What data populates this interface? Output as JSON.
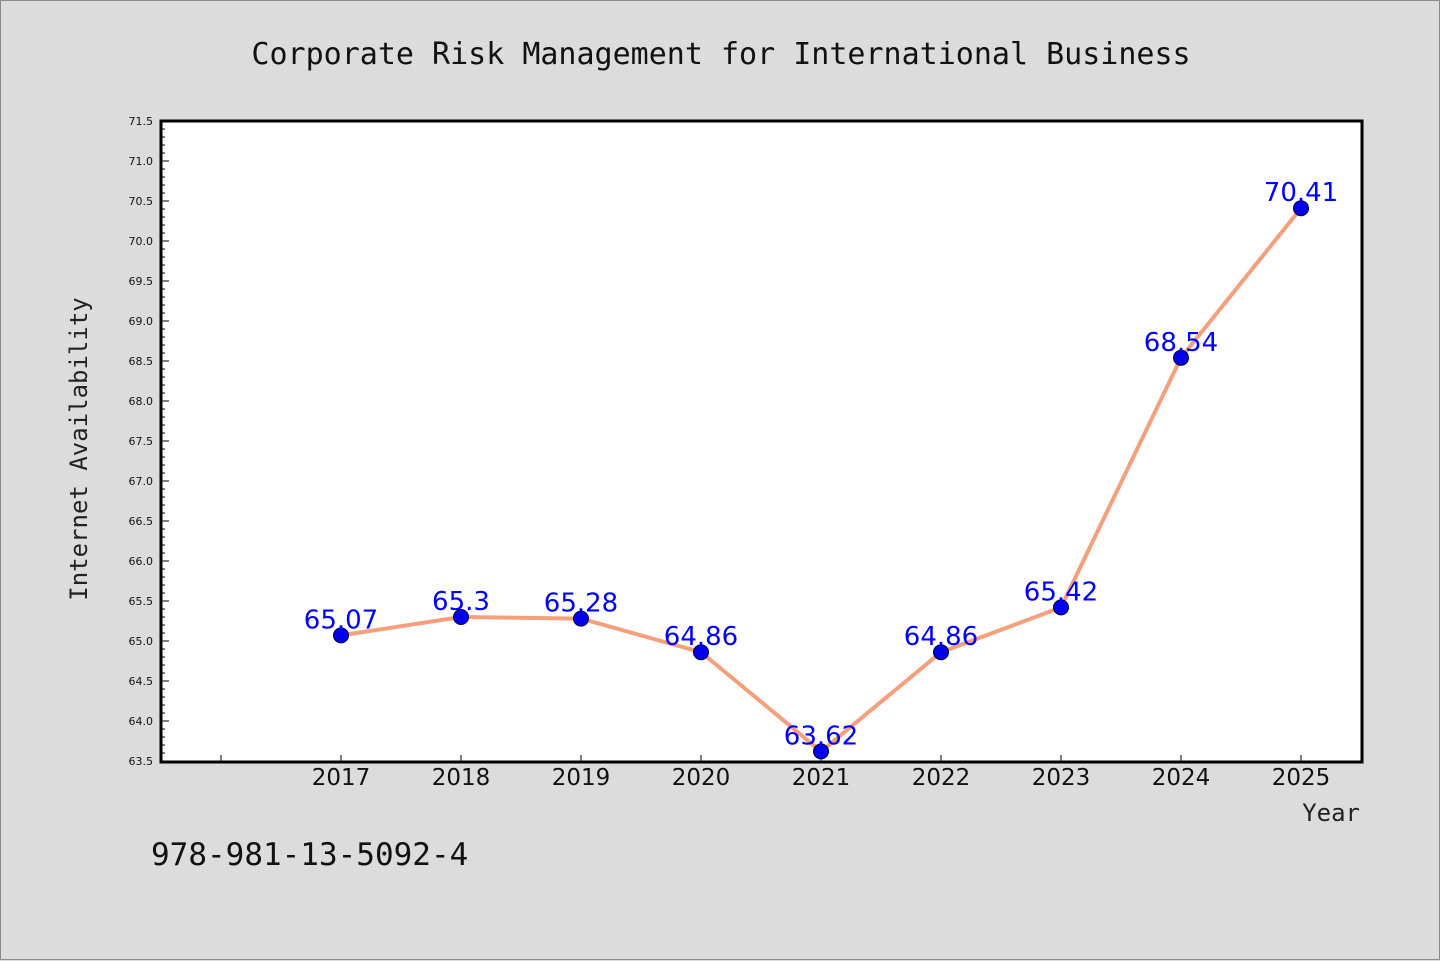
{
  "chart_data": {
    "type": "line",
    "title": "Corporate Risk Management for International Business",
    "xlabel": "Year",
    "ylabel": "Internet Availability",
    "categories": [
      "2017",
      "2018",
      "2019",
      "2020",
      "2021",
      "2022",
      "2023",
      "2024",
      "2025"
    ],
    "series": [
      {
        "values": [
          65.07,
          65.3,
          65.28,
          64.86,
          63.62,
          64.86,
          65.42,
          68.54,
          70.41
        ],
        "labels": [
          "65.07",
          "65.3",
          "65.28",
          "64.86",
          "63.62",
          "64.86",
          "65.42",
          "68.54",
          "70.41"
        ],
        "line_color": "#f4a07c",
        "marker_color": "#0000ee"
      }
    ],
    "ylim": [
      63.5,
      71.5
    ],
    "yticks": [
      "63.5",
      "64.0",
      "64.5",
      "65.0",
      "65.5",
      "66.0",
      "66.5",
      "67.0",
      "67.5",
      "68.0",
      "68.5",
      "69.0",
      "69.5",
      "70.0",
      "70.5",
      "71.0",
      "71.5"
    ],
    "grid": false,
    "legend": "none"
  },
  "footer": {
    "isbn": "978-981-13-5092-4"
  },
  "colors": {
    "background": "#dcdcdc",
    "plot_background": "#ffffff",
    "label_color": "#0000ff"
  }
}
